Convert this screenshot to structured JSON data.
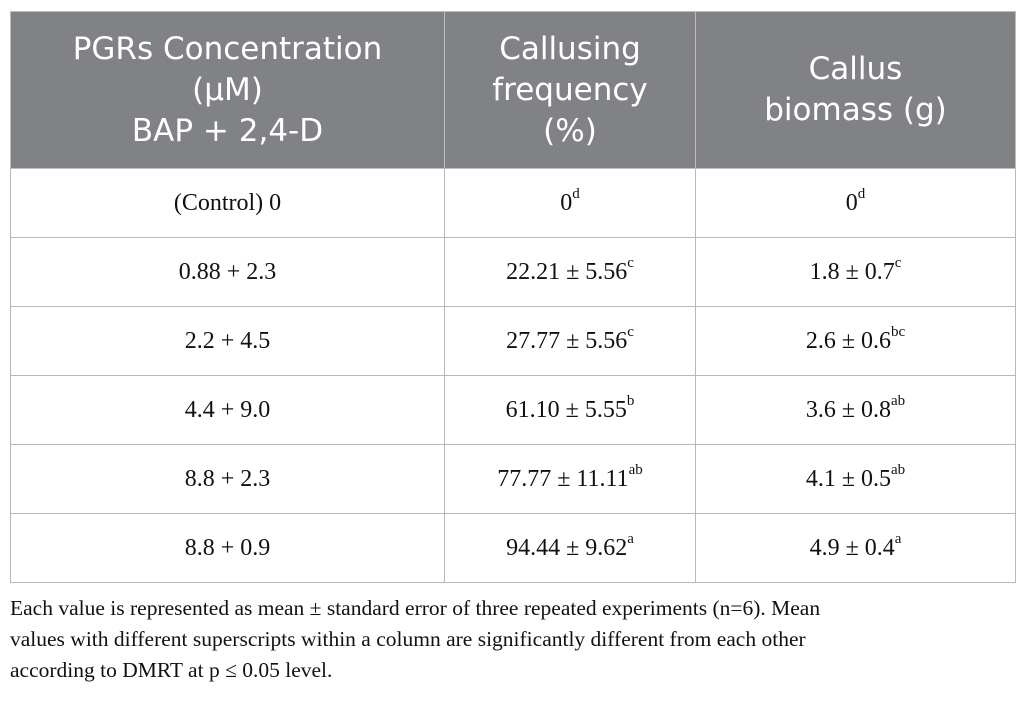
{
  "table": {
    "headers": [
      {
        "lines": [
          "PGRs Concentration",
          "(μM)",
          "BAP + 2,4-D"
        ]
      },
      {
        "lines": [
          "Callusing",
          "frequency",
          "(%)"
        ]
      },
      {
        "lines": [
          "Callus",
          "biomass (g)"
        ]
      }
    ],
    "rows": [
      {
        "concentration": "(Control) 0",
        "frequency": {
          "value": "0",
          "sup": "d"
        },
        "biomass": {
          "value": "0",
          "sup": "d"
        }
      },
      {
        "concentration": "0.88 + 2.3",
        "frequency": {
          "value": "22.21 ± 5.56",
          "sup": "c"
        },
        "biomass": {
          "value": "1.8 ± 0.7",
          "sup": "c"
        }
      },
      {
        "concentration": "2.2 + 4.5",
        "frequency": {
          "value": "27.77 ± 5.56",
          "sup": "c"
        },
        "biomass": {
          "value": "2.6 ± 0.6",
          "sup": "bc"
        }
      },
      {
        "concentration": "4.4 + 9.0",
        "frequency": {
          "value": "61.10 ± 5.55",
          "sup": "b"
        },
        "biomass": {
          "value": "3.6 ± 0.8",
          "sup": "ab"
        }
      },
      {
        "concentration": "8.8 + 2.3",
        "frequency": {
          "value": "77.77 ± 11.11",
          "sup": "ab"
        },
        "biomass": {
          "value": "4.1 ± 0.5",
          "sup": "ab"
        }
      },
      {
        "concentration": "8.8 + 0.9",
        "frequency": {
          "value": "94.44 ± 9.62",
          "sup": "a"
        },
        "biomass": {
          "value": "4.9 ± 0.4",
          "sup": "a"
        }
      }
    ]
  },
  "footnote": {
    "lines": [
      "Each value is represented as mean ± standard error of three repeated experiments (n=6). Mean",
      "values with different superscripts within a column are significantly different from each other",
      "according to DMRT at p ≤ 0.05 level."
    ]
  },
  "colors": {
    "header_background": "#808285",
    "header_text": "#ffffff",
    "grid_lines": "#b8b8b8"
  }
}
